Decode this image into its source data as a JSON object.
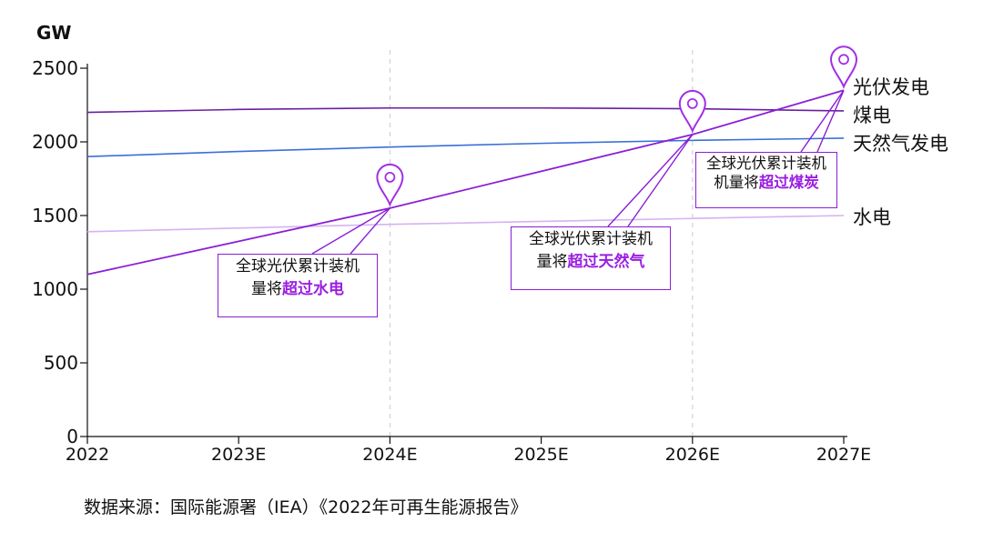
{
  "unit_label": "GW",
  "source": "数据来源：国际能源署（IEA）《2022年可再生能源报告》",
  "colors": {
    "solar": "#8a1fd6",
    "coal": "#6a1fa0",
    "gas": "#3a6fd8",
    "hydro": "#d5b2f2",
    "highlight": "#9a1fe0"
  },
  "chart_data": {
    "type": "line",
    "ylabel": "GW",
    "xlabel": "",
    "ylim": [
      0,
      2500
    ],
    "y_ticks": [
      0,
      500,
      1000,
      1500,
      2000,
      2500
    ],
    "categories": [
      "2022",
      "2023E",
      "2024E",
      "2025E",
      "2026E",
      "2027E"
    ],
    "series": [
      {
        "name": "光伏发电",
        "color": "#8a1fd6",
        "values": [
          1100,
          1325,
          1550,
          1800,
          2050,
          2350
        ]
      },
      {
        "name": "煤电",
        "color": "#6a1fa0",
        "values": [
          2200,
          2220,
          2230,
          2230,
          2225,
          2210
        ]
      },
      {
        "name": "天然气发电",
        "color": "#3a6fd8",
        "values": [
          1900,
          1935,
          1965,
          1990,
          2010,
          2025
        ]
      },
      {
        "name": "水电",
        "color": "#d5b2f2",
        "values": [
          1390,
          1415,
          1440,
          1460,
          1480,
          1500
        ]
      }
    ],
    "annotations": [
      {
        "category": "2024E",
        "value": 1550,
        "line1": "全球光伏累计装机",
        "prefix": "量将",
        "highlight": "超过水电"
      },
      {
        "category": "2026E",
        "value": 2050,
        "line1": "全球光伏累计装机",
        "prefix": "量将",
        "highlight": "超过天然气"
      },
      {
        "category": "2027E",
        "value": 2350,
        "line1": "全球光伏累计装机",
        "prefix": "机量将",
        "highlight": "超过煤炭"
      }
    ]
  }
}
